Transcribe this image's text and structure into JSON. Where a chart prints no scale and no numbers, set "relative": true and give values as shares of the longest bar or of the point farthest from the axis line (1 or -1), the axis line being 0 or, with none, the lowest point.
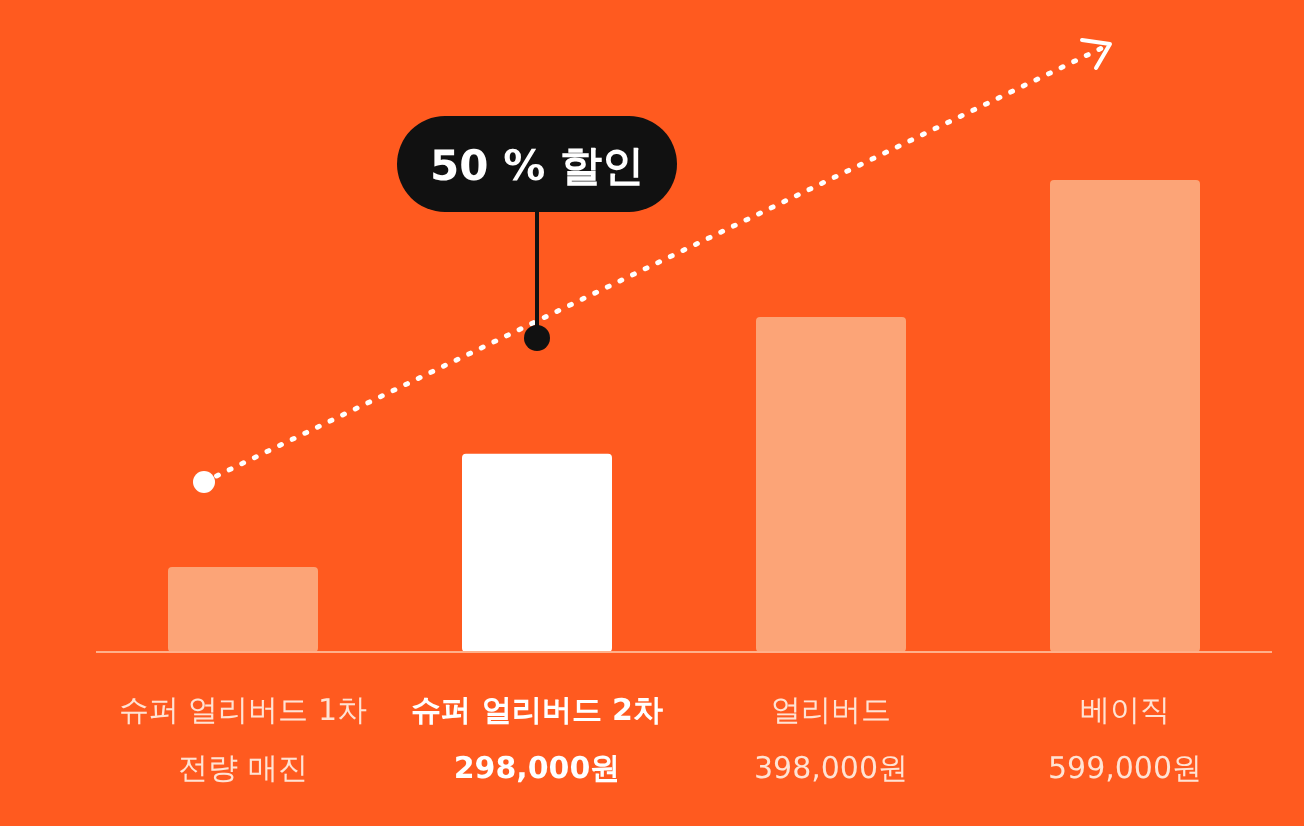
{
  "chart_data": {
    "type": "bar",
    "relative": true,
    "categories": [
      "슈퍼 얼리버드 1차\n전량 매진",
      "슈퍼 얼리버드 2차\n298,000원",
      "얼리버드\n398,000원",
      "베이직\n599,000원"
    ],
    "values": [
      0.18,
      0.42,
      0.71,
      1
    ],
    "colors": [
      "#fca477",
      "#ffffff",
      "#fca477",
      "#fca477"
    ],
    "annotations": [
      "50 % 할인"
    ]
  }
}
